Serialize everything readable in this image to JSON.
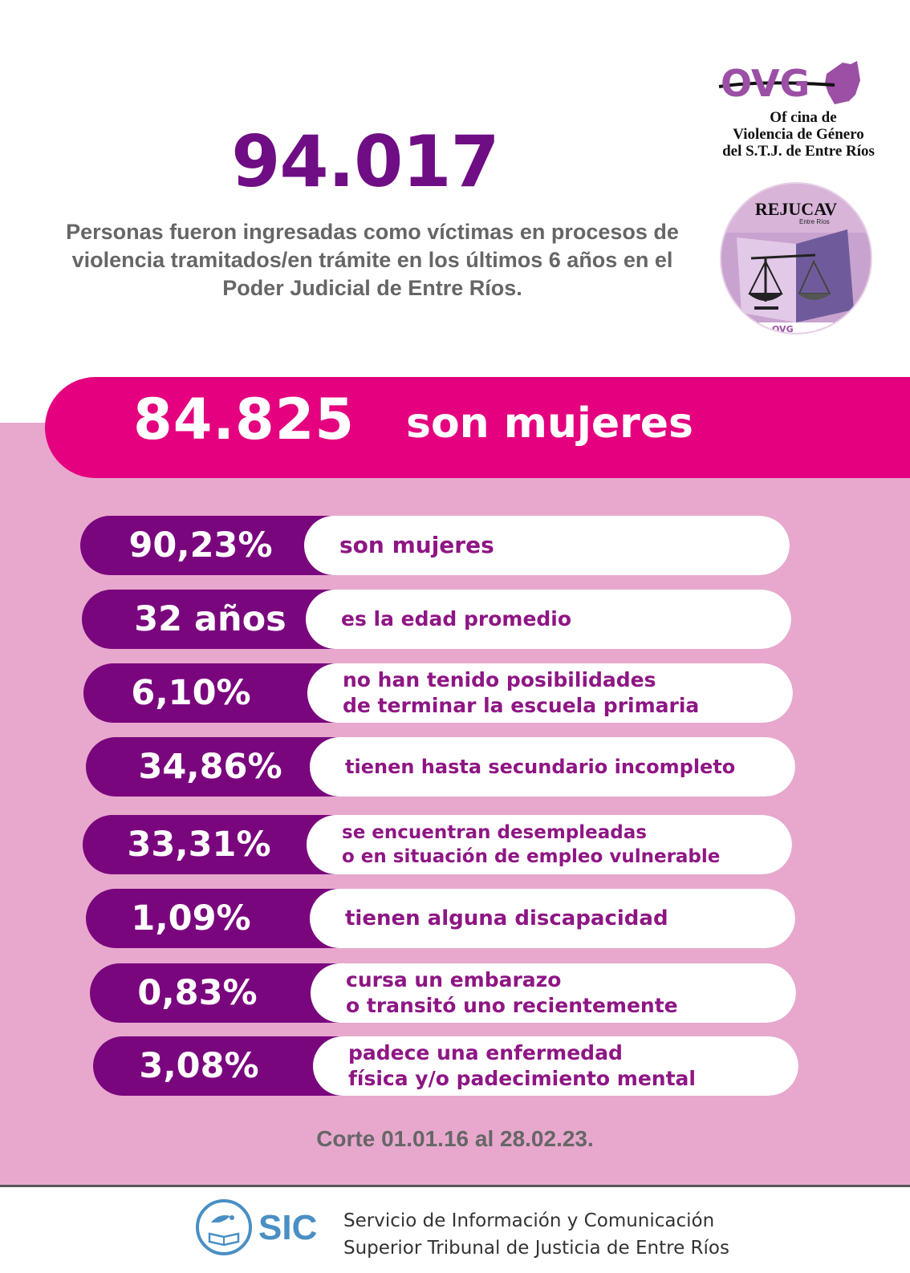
{
  "headline": {
    "number": "94.017",
    "description": "Personas fueron ingresadas como víctimas en procesos de violencia tramitados/en trámite en los últimos 6 años en el Poder Judicial de Entre Ríos."
  },
  "logos": {
    "ovg": {
      "mark": "OVG",
      "text_line1": "Of cina de",
      "text_line2": "Violencia de Género",
      "text_line3": "del S.T.J. de Entre Ríos"
    },
    "rejucav": {
      "title": "REJUCAV",
      "subtitle": "Entre Ríos",
      "footer_mark": "OVG"
    }
  },
  "highlight": {
    "number": "84.825",
    "label": "son mujeres"
  },
  "stats": [
    {
      "value": "90,23%",
      "text": "son mujeres"
    },
    {
      "value": "32 años",
      "text": "es la edad promedio"
    },
    {
      "value": "6,10%",
      "text": "no han tenido posibilidades\nde terminar la escuela primaria"
    },
    {
      "value": "34,86%",
      "text": "tienen hasta secundario incompleto"
    },
    {
      "value": "33,31%",
      "text": "se encuentran desempleadas\no en situación de empleo vulnerable"
    },
    {
      "value": "1,09%",
      "text": "tienen alguna discapacidad"
    },
    {
      "value": "0,83%",
      "text": "cursa un embarazo\no transitó uno recientemente"
    },
    {
      "value": "3,08%",
      "text": "padece una enfermedad\nfísica y/o padecimiento mental"
    }
  ],
  "cutoff": "Corte 01.01.16 al 28.02.23.",
  "footer": {
    "acronym": "SIC",
    "line1": "Servicio de Información y Comunicación",
    "line2": "Superior Tribunal de Justicia de Entre Ríos"
  },
  "colors": {
    "purple": "#7a067e",
    "magenta": "#e4007e",
    "pink_bg": "#e8a8cd",
    "headline_purple": "#6f0d84",
    "sic_blue": "#4a8fc4"
  }
}
